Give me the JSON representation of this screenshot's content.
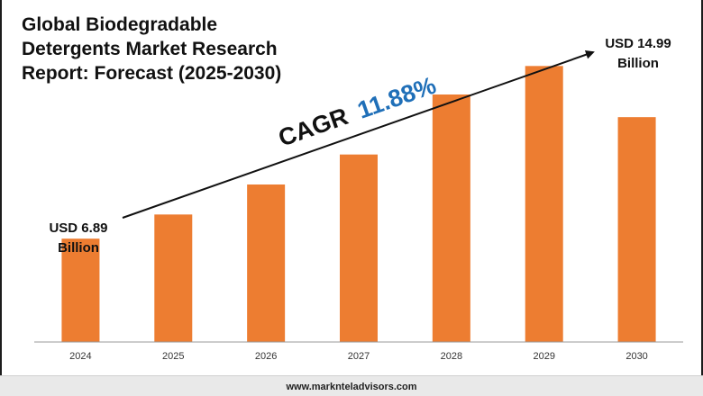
{
  "title_lines": [
    "Global Biodegradable",
    "Detergents Market Research",
    "Report: Forecast (2025-2030)"
  ],
  "footer": "www.marknteladvisors.com",
  "annotations": {
    "start_value_line1": "USD 6.89",
    "start_value_line2": "Billion",
    "end_value_line1": "USD 14.99",
    "end_value_line2": "Billion",
    "cagr_label": "CAGR",
    "cagr_value": "11.88%"
  },
  "colors": {
    "bar": "#ED7D31",
    "cagr_value": "#1F6FB8",
    "text": "#111111",
    "axis": "#9a9a9a"
  },
  "chart_data": {
    "type": "bar",
    "title": "Global Biodegradable Detergents Market Research Report: Forecast (2025-2030)",
    "categories": [
      "2024",
      "2025",
      "2026",
      "2027",
      "2028",
      "2029",
      "2030"
    ],
    "values": [
      6.89,
      8.5,
      10.5,
      12.5,
      16.5,
      18.4,
      14.99
    ],
    "labeled_values": {
      "2024": "USD 6.89 Billion",
      "2030": "USD 14.99 Billion"
    },
    "xlabel": "",
    "ylabel": "",
    "grid": false,
    "legend": "none"
  }
}
